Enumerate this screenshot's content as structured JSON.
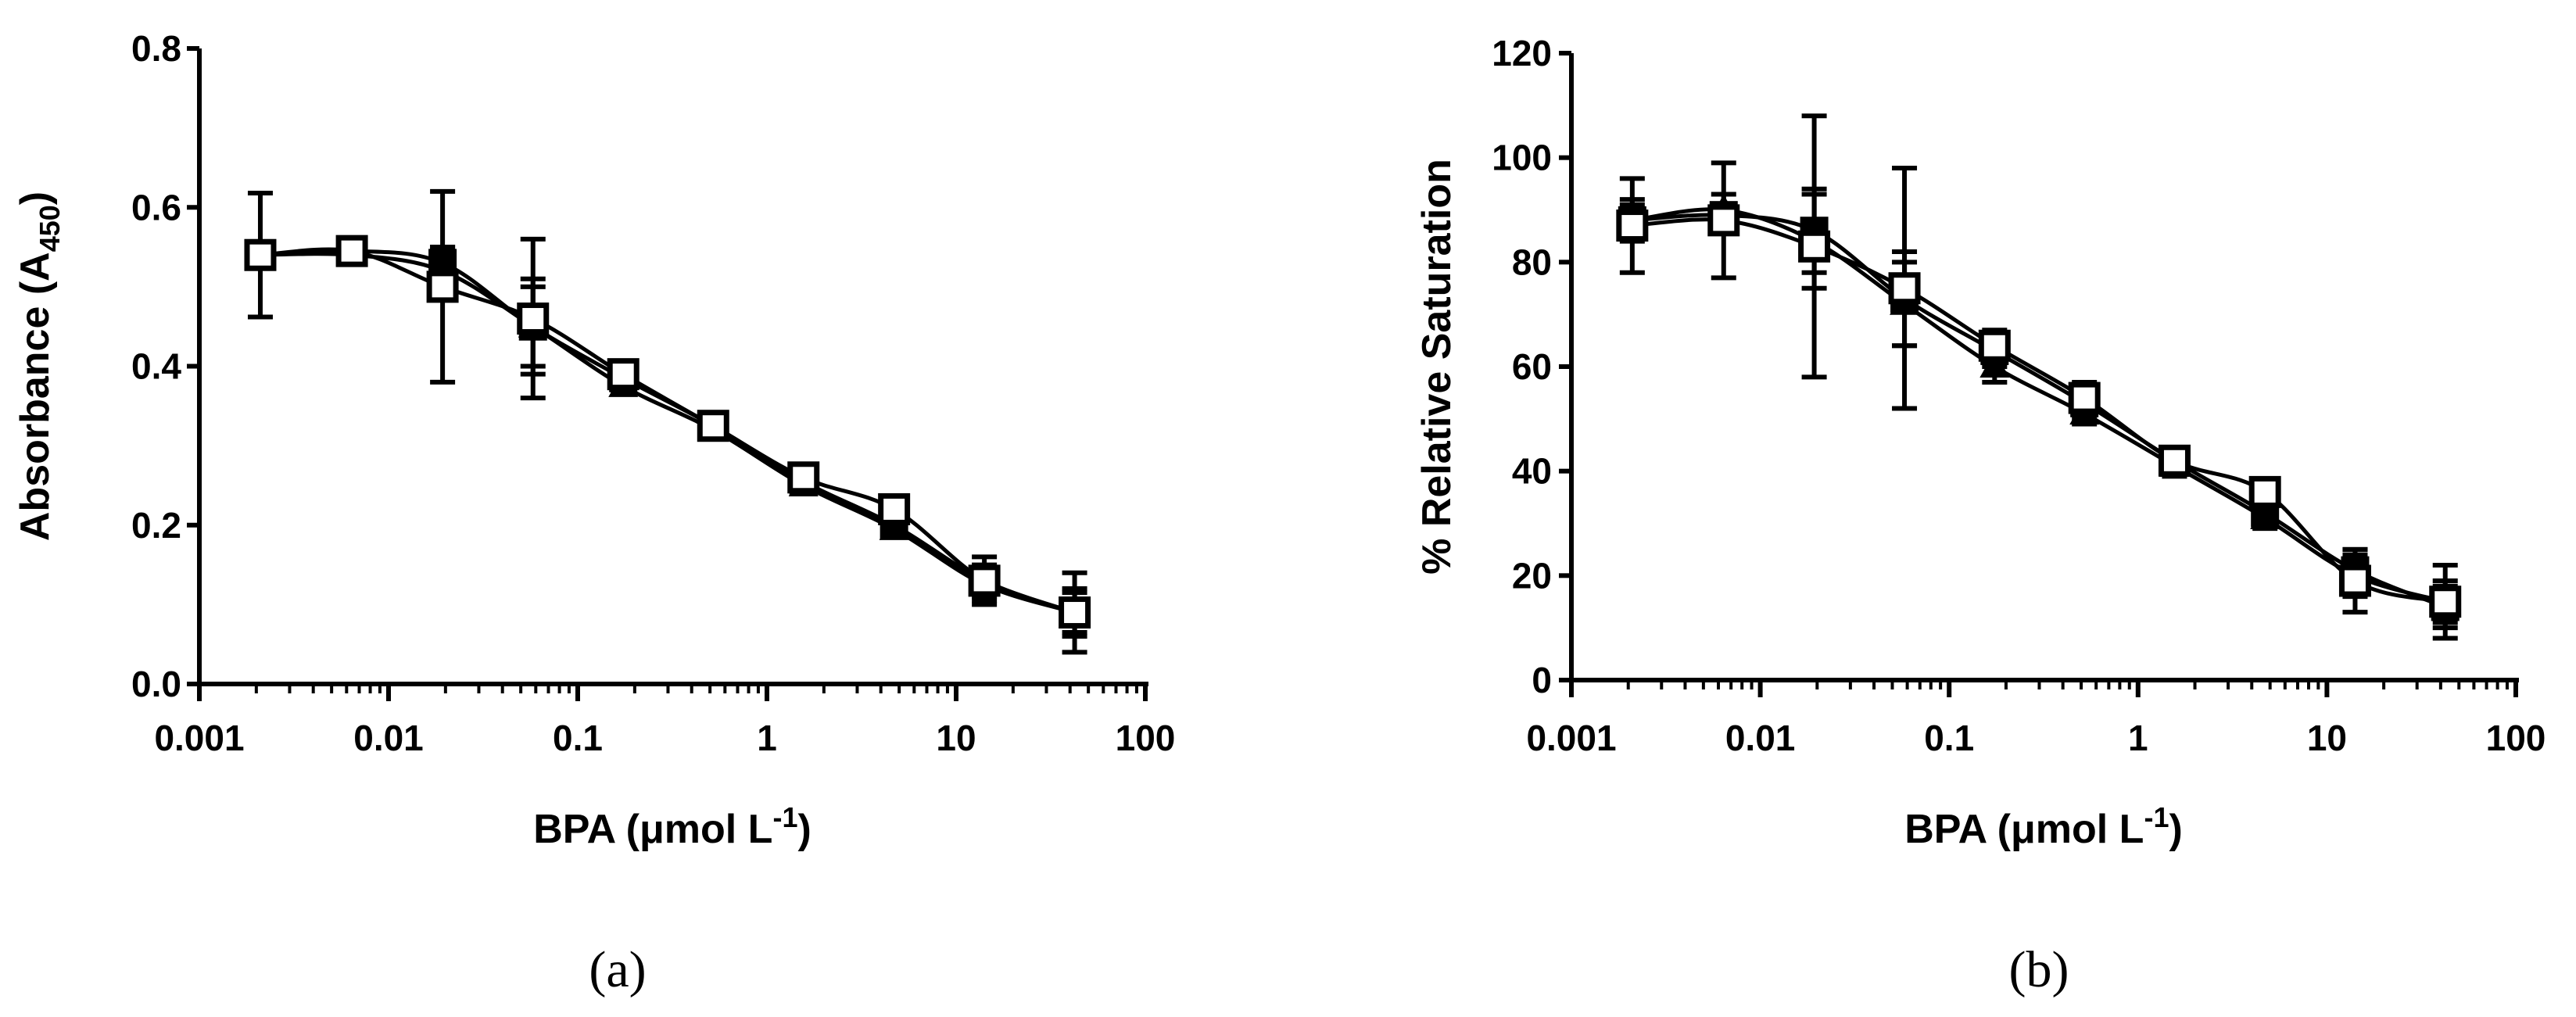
{
  "chart_data": [
    {
      "type": "line",
      "panel_label": "(a)",
      "title": "",
      "xlabel": {
        "main": "BPA (μmol L",
        "sup": "-1",
        "end": ")"
      },
      "ylabel": {
        "main": "Absorbance (A",
        "sub": "450",
        "end": ")"
      },
      "xscale": "log",
      "xlim": [
        0.001,
        100
      ],
      "ylim": [
        0,
        0.8
      ],
      "x_ticks": [
        0.001,
        0.01,
        0.1,
        1,
        10,
        100
      ],
      "x_tick_labels": [
        "0.001",
        "0.01",
        "0.1",
        "1",
        "10",
        "100"
      ],
      "y_ticks": [
        0,
        0.2,
        0.4,
        0.6,
        0.8
      ],
      "y_tick_labels": [
        "0.0",
        "0.2",
        "0.4",
        "0.6",
        "0.8"
      ],
      "x": [
        0.0021,
        0.0064,
        0.0193,
        0.058,
        0.174,
        0.52,
        1.56,
        4.7,
        14.1,
        42.3
      ],
      "series": [
        {
          "name": "filled-square",
          "marker": "square-filled",
          "values": [
            0.54,
            0.545,
            0.53,
            0.45,
            0.385,
            0.325,
            0.255,
            0.2,
            0.13,
            0.09
          ],
          "errors": [
            0.008,
            0.008,
            0.02,
            0.06,
            0.012,
            0.01,
            0.01,
            0.01,
            0.02,
            0.03
          ]
        },
        {
          "name": "filled-triangle",
          "marker": "triangle-filled",
          "values": [
            0.54,
            0.54,
            0.52,
            0.45,
            0.375,
            0.32,
            0.25,
            0.195,
            0.125,
            0.09
          ],
          "errors": [
            0.008,
            0.008,
            0.03,
            0.05,
            0.01,
            0.01,
            0.01,
            0.01,
            0.02,
            0.025
          ]
        },
        {
          "name": "open-square",
          "marker": "square-open",
          "values": [
            0.54,
            0.545,
            0.5,
            0.46,
            0.39,
            0.325,
            0.26,
            0.22,
            0.13,
            0.09
          ],
          "errors": [
            0.078,
            0.012,
            0.12,
            0.1,
            0.015,
            0.01,
            0.012,
            0.012,
            0.03,
            0.05
          ]
        }
      ]
    },
    {
      "type": "line",
      "panel_label": "(b)",
      "title": "",
      "xlabel": {
        "main": "BPA (μmol L",
        "sup": "-1",
        "end": ")"
      },
      "ylabel": {
        "main": "% Relative Saturation"
      },
      "xscale": "log",
      "xlim": [
        0.001,
        100
      ],
      "ylim": [
        0,
        120
      ],
      "x_ticks": [
        0.001,
        0.01,
        0.1,
        1,
        10,
        100
      ],
      "x_tick_labels": [
        "0.001",
        "0.01",
        "0.1",
        "1",
        "10",
        "100"
      ],
      "y_ticks": [
        0,
        20,
        40,
        60,
        80,
        100,
        120
      ],
      "y_tick_labels": [
        "0",
        "20",
        "40",
        "60",
        "80",
        "100",
        "120"
      ],
      "x": [
        0.0021,
        0.0064,
        0.0193,
        0.058,
        0.174,
        0.52,
        1.56,
        4.7,
        14.1,
        42.3
      ],
      "series": [
        {
          "name": "filled-square",
          "marker": "square-filled",
          "values": [
            88,
            89,
            86,
            73,
            63,
            53,
            42,
            32,
            21,
            14
          ],
          "errors": [
            3,
            2,
            8,
            9,
            3,
            3,
            2,
            2,
            4,
            4
          ]
        },
        {
          "name": "filled-triangle",
          "marker": "triangle-filled",
          "values": [
            88,
            90,
            84,
            72,
            60,
            51,
            41,
            31,
            20,
            15
          ],
          "errors": [
            4,
            3,
            9,
            8,
            3,
            2,
            2,
            2,
            4,
            4
          ]
        },
        {
          "name": "open-square",
          "marker": "square-open",
          "values": [
            87,
            88,
            83,
            75,
            64,
            54,
            42,
            36,
            19,
            15
          ],
          "errors": [
            9,
            11,
            25,
            23,
            3,
            3,
            2,
            2,
            6,
            7
          ]
        }
      ]
    }
  ]
}
